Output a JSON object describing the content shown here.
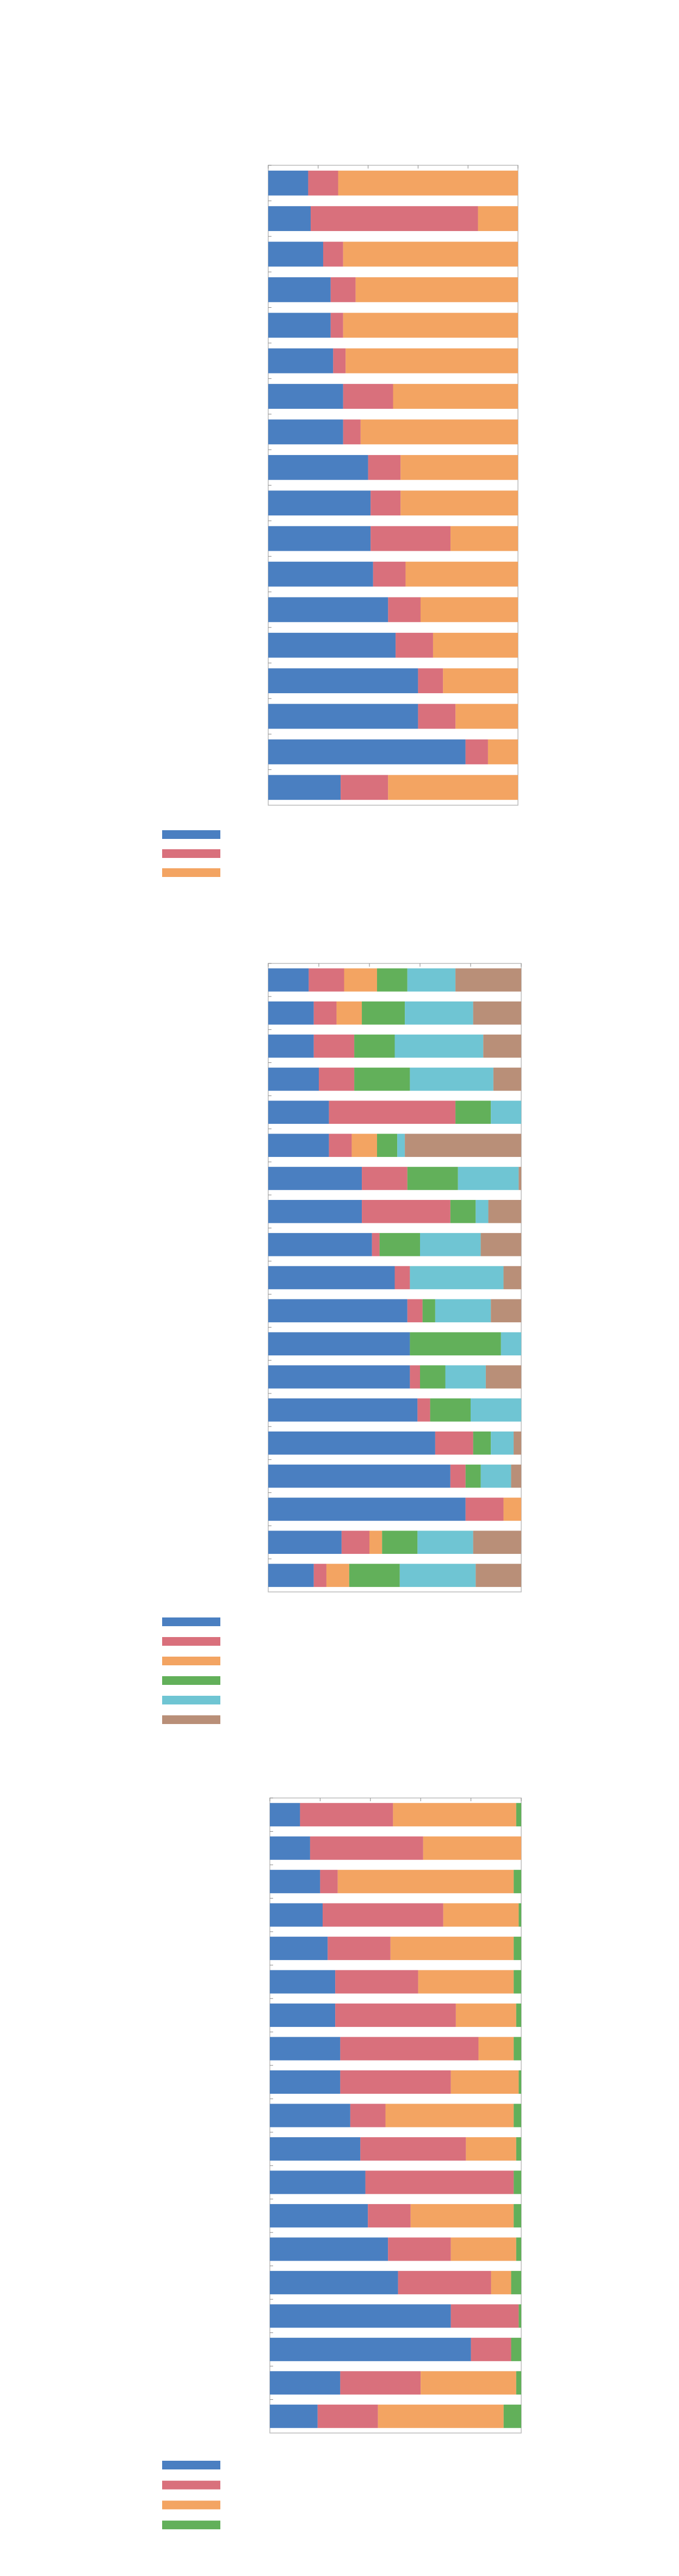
{
  "chart_data": [
    {
      "type": "bar",
      "orientation": "horizontal",
      "stacked": true,
      "categories": [
        null,
        null,
        null,
        null,
        null,
        null,
        null,
        null,
        null,
        null,
        null,
        null,
        null,
        null,
        null,
        null,
        null,
        null
      ],
      "xlim": [
        0,
        100
      ],
      "xticks": [
        0,
        20,
        40,
        60,
        80,
        100
      ],
      "series": [
        {
          "color": "#4a7fc1",
          "values": [
            16,
            17,
            22,
            25,
            25,
            26,
            30,
            30,
            40,
            41,
            41,
            42,
            48,
            51,
            60,
            60,
            79,
            29
          ]
        },
        {
          "color": "#d9707c",
          "values": [
            12,
            67,
            8,
            10,
            5,
            5,
            20,
            7,
            13,
            12,
            32,
            13,
            13,
            15,
            10,
            15,
            9,
            19
          ]
        },
        {
          "color": "#f3a462",
          "values": [
            72,
            16,
            70,
            65,
            70,
            69,
            50,
            63,
            47,
            47,
            27,
            45,
            39,
            34,
            30,
            25,
            12,
            52
          ]
        }
      ]
    },
    {
      "type": "bar",
      "orientation": "horizontal",
      "stacked": true,
      "categories": [
        null,
        null,
        null,
        null,
        null,
        null,
        null,
        null,
        null,
        null,
        null,
        null,
        null,
        null,
        null,
        null,
        null,
        null,
        null
      ],
      "xlim": [
        0,
        100
      ],
      "xticks": [
        0,
        20,
        40,
        60,
        80,
        100
      ],
      "series": [
        {
          "color": "#4a7fc1",
          "values": [
            16,
            18,
            18,
            20,
            24,
            24,
            37,
            37,
            41,
            50,
            55,
            56,
            56,
            59,
            66,
            72,
            78,
            29,
            18
          ]
        },
        {
          "color": "#d9707c",
          "values": [
            14,
            9,
            16,
            14,
            50,
            9,
            18,
            35,
            3,
            6,
            6,
            0,
            4,
            5,
            15,
            6,
            15,
            11,
            5
          ]
        },
        {
          "color": "#f3a462",
          "values": [
            13,
            10,
            0,
            0,
            0,
            10,
            0,
            0,
            0,
            0,
            0,
            0,
            0,
            0,
            0,
            0,
            7,
            5,
            9
          ]
        },
        {
          "color": "#62b05a",
          "values": [
            12,
            17,
            16,
            22,
            14,
            8,
            20,
            10,
            16,
            0,
            5,
            36,
            10,
            16,
            7,
            6,
            0,
            14,
            20
          ]
        },
        {
          "color": "#6fc5d3",
          "values": [
            19,
            27,
            35,
            33,
            12,
            3,
            24,
            5,
            24,
            37,
            22,
            8,
            16,
            20,
            9,
            12,
            0,
            22,
            30
          ]
        },
        {
          "color": "#b98f78",
          "values": [
            26,
            19,
            15,
            11,
            0,
            46,
            1,
            13,
            16,
            7,
            12,
            0,
            14,
            0,
            3,
            4,
            0,
            19,
            18
          ]
        }
      ]
    },
    {
      "type": "bar",
      "orientation": "horizontal",
      "stacked": true,
      "categories": [
        null,
        null,
        null,
        null,
        null,
        null,
        null,
        null,
        null,
        null,
        null,
        null,
        null,
        null,
        null,
        null,
        null,
        null,
        null
      ],
      "xlim": [
        0,
        100
      ],
      "xticks": [
        0,
        20,
        40,
        60,
        80,
        100
      ],
      "series": [
        {
          "color": "#4a7fc1",
          "values": [
            12,
            16,
            20,
            21,
            23,
            26,
            26,
            28,
            28,
            32,
            36,
            38,
            39,
            47,
            51,
            72,
            80,
            28,
            19
          ]
        },
        {
          "color": "#d9707c",
          "values": [
            37,
            45,
            7,
            48,
            25,
            33,
            48,
            55,
            44,
            14,
            42,
            59,
            17,
            25,
            37,
            27,
            16,
            32,
            24
          ]
        },
        {
          "color": "#f3a462",
          "values": [
            49,
            39,
            70,
            30,
            49,
            38,
            24,
            14,
            27,
            51,
            20,
            0,
            41,
            26,
            8,
            0,
            0,
            38,
            50
          ]
        },
        {
          "color": "#62b05a",
          "values": [
            2,
            0,
            3,
            1,
            3,
            3,
            2,
            3,
            1,
            3,
            2,
            3,
            3,
            2,
            4,
            1,
            4,
            2,
            7
          ]
        }
      ]
    }
  ]
}
